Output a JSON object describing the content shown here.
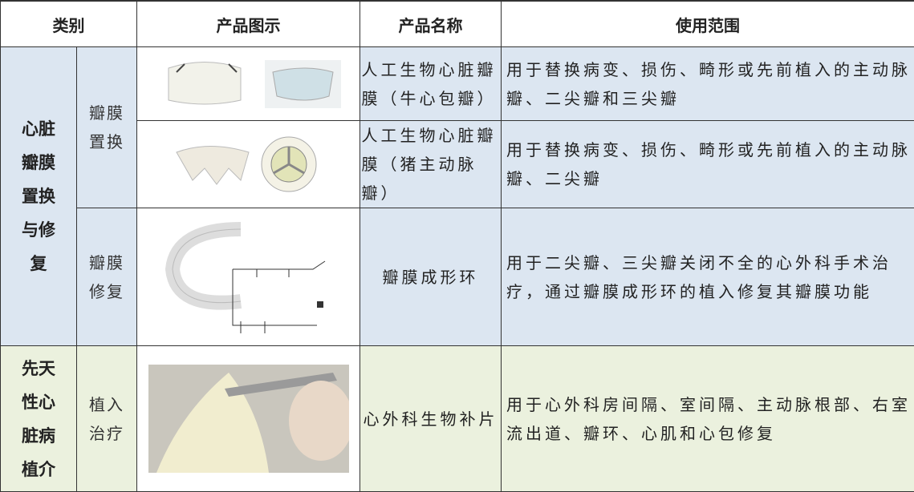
{
  "table": {
    "header": [
      "类别",
      "产品图示",
      "产品名称",
      "使用范围"
    ],
    "sections": [
      {
        "category": "心脏瓣膜置换与修复",
        "subgroups": [
          {
            "subcategory": "瓣膜置换",
            "products": [
              {
                "name": "人工生物心脏瓣膜（牛心包瓣）",
                "usage": "用于替换病变、损伤、畸形或先前植入的主动脉瓣、二尖瓣和三尖瓣"
              },
              {
                "name": "人工生物心脏瓣膜（猪主动脉瓣）",
                "usage": "用于替换病变、损伤、畸形或先前植入的主动脉瓣、二尖瓣"
              }
            ]
          },
          {
            "subcategory": "瓣膜修复",
            "products": [
              {
                "name": "瓣膜成形环",
                "usage": "用于二尖瓣、三尖瓣关闭不全的心外科手术治疗，通过瓣膜成形环的植入修复其瓣膜功能"
              }
            ]
          }
        ]
      },
      {
        "category": "先天性心脏病植介",
        "subgroups": [
          {
            "subcategory": "植入治疗",
            "products": [
              {
                "name": "心外科生物补片",
                "usage": "用于心外科房间隔、室间隔、主动脉根部、右室流出道、瓣环、心肌和心包修复"
              }
            ]
          }
        ]
      }
    ]
  }
}
